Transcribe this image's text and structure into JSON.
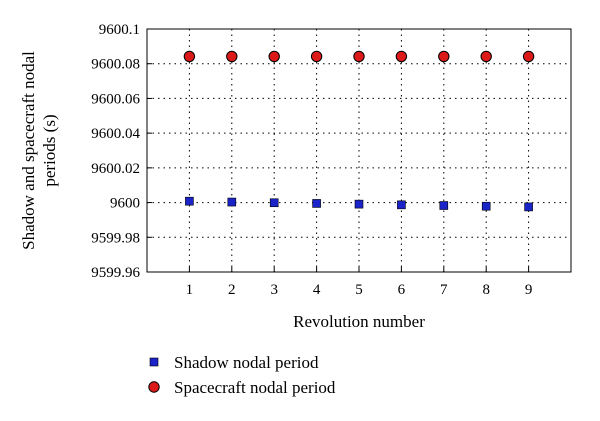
{
  "chart_data": {
    "type": "scatter",
    "title": "",
    "xlabel": "Revolution number",
    "ylabel": "Shadow and spacecraft nodal periods (s)",
    "ylabel_lines": [
      "Shadow and spacecraft nodal",
      "periods (s)"
    ],
    "xlim": [
      0,
      10
    ],
    "ylim": [
      9599.96,
      9600.1
    ],
    "x_ticks": [
      1,
      2,
      3,
      4,
      5,
      6,
      7,
      8,
      9
    ],
    "x_tick_labels": [
      "1",
      "2",
      "3",
      "4",
      "5",
      "6",
      "7",
      "8",
      "9"
    ],
    "y_ticks": [
      9599.96,
      9599.98,
      9600.0,
      9600.02,
      9600.04,
      9600.06,
      9600.08,
      9600.1
    ],
    "y_tick_labels": [
      "9599.96",
      "9599.98",
      "9600",
      "9600.02",
      "9600.04",
      "9600.06",
      "9600.08",
      "9600.1"
    ],
    "grid": true,
    "legend_position": "bottom-left",
    "series": [
      {
        "name": "Shadow nodal period",
        "marker": "square",
        "color": "#1a23c8",
        "x": [
          1,
          2,
          3,
          4,
          5,
          6,
          7,
          8,
          9
        ],
        "y": [
          9600.0008,
          9600.0003,
          9599.9999,
          9599.9995,
          9599.9991,
          9599.9987,
          9599.9983,
          9599.9979,
          9599.9975
        ]
      },
      {
        "name": "Spacecraft nodal period",
        "marker": "circle",
        "color": "#dd1a1a",
        "x": [
          1,
          2,
          3,
          4,
          5,
          6,
          7,
          8,
          9
        ],
        "y": [
          9600.0842,
          9600.0842,
          9600.0842,
          9600.0842,
          9600.0842,
          9600.0842,
          9600.0842,
          9600.0842,
          9600.0842
        ]
      }
    ]
  }
}
